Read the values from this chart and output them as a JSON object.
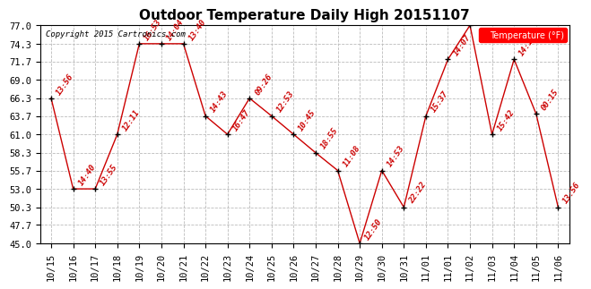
{
  "title": "Outdoor Temperature Daily High 20151107",
  "copyright": "Copyright 2015 Cartronics.com",
  "legend_label": "Temperature (°F)",
  "x_labels": [
    "10/15",
    "10/16",
    "10/17",
    "10/18",
    "10/19",
    "10/20",
    "10/21",
    "10/22",
    "10/23",
    "10/24",
    "10/25",
    "10/26",
    "10/27",
    "10/28",
    "10/29",
    "10/30",
    "10/31",
    "11/01",
    "11/01",
    "11/02",
    "11/03",
    "11/04",
    "11/05",
    "11/06"
  ],
  "y_values": [
    66.3,
    53.0,
    53.0,
    61.0,
    74.3,
    74.3,
    74.3,
    63.7,
    61.0,
    66.3,
    63.7,
    61.0,
    58.3,
    55.7,
    45.0,
    55.7,
    50.3,
    63.7,
    72.0,
    77.0,
    61.0,
    72.0,
    64.0,
    50.3
  ],
  "time_labels": [
    "13:56",
    "14:40",
    "13:55",
    "12:11",
    "16:53",
    "14:04",
    "13:40",
    "14:43",
    "16:47",
    "09:26",
    "12:53",
    "10:45",
    "18:55",
    "11:08",
    "12:50",
    "14:53",
    "22:22",
    "15:37",
    "14:07",
    "",
    "15:42",
    "14:19",
    "00:15",
    "13:56"
  ],
  "ylim": [
    45.0,
    77.0
  ],
  "yticks": [
    45.0,
    47.7,
    50.3,
    53.0,
    55.7,
    58.3,
    61.0,
    63.7,
    66.3,
    69.0,
    71.7,
    74.3,
    77.0
  ],
  "line_color": "#cc0000",
  "marker_color": "#000000",
  "grid_color": "#bbbbbb",
  "bg_color": "#ffffff",
  "title_fontsize": 11,
  "annotation_fontsize": 6.5,
  "tick_fontsize": 7.5,
  "copyright_fontsize": 6.5
}
